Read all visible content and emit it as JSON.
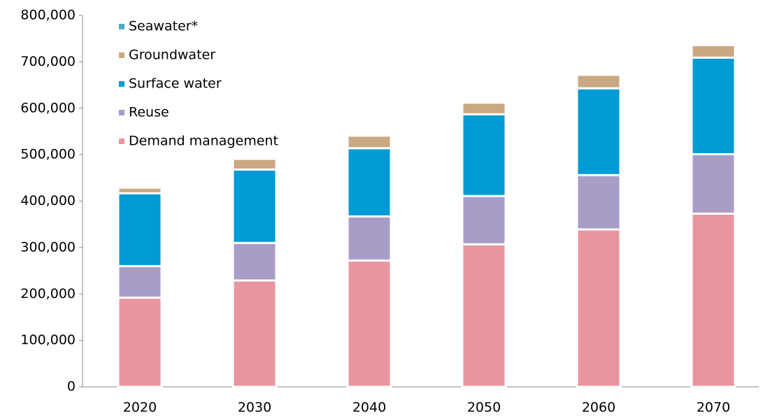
{
  "chart_data": {
    "type": "stacked_bar",
    "categories": [
      "2020",
      "2030",
      "2040",
      "2050",
      "2060",
      "2070"
    ],
    "series": [
      {
        "name": "Demand management",
        "color": "#e8959f",
        "values": [
          192000,
          229000,
          272000,
          307000,
          339000,
          373000
        ]
      },
      {
        "name": "Reuse",
        "color": "#a99dc8",
        "values": [
          68000,
          81000,
          95000,
          104000,
          117000,
          128000
        ]
      },
      {
        "name": "Surface water",
        "color": "#009bd5",
        "values": [
          157000,
          158000,
          147000,
          176000,
          187000,
          208000
        ]
      },
      {
        "name": "Groundwater",
        "color": "#c9a882",
        "values": [
          12000,
          23000,
          27000,
          25000,
          29000,
          27000
        ]
      },
      {
        "name": "Seawater*",
        "color": "#4bacc6",
        "values": [
          0,
          0,
          0,
          0,
          0,
          0
        ]
      }
    ],
    "ylim": [
      0,
      800000
    ],
    "yticks": [
      0,
      {
        "value": 100000,
        "label": "100,000"
      },
      {
        "value": 200000,
        "label": "200,000"
      },
      {
        "value": 300000,
        "label": "300,000"
      },
      {
        "value": 400000,
        "label": "400,000"
      },
      {
        "value": 500000,
        "label": "500,000"
      },
      {
        "value": 600000,
        "label": "600,000"
      },
      {
        "value": 700000,
        "label": "700,000"
      },
      {
        "value": 800000,
        "label": "800,000"
      }
    ],
    "legend": "top-left"
  }
}
